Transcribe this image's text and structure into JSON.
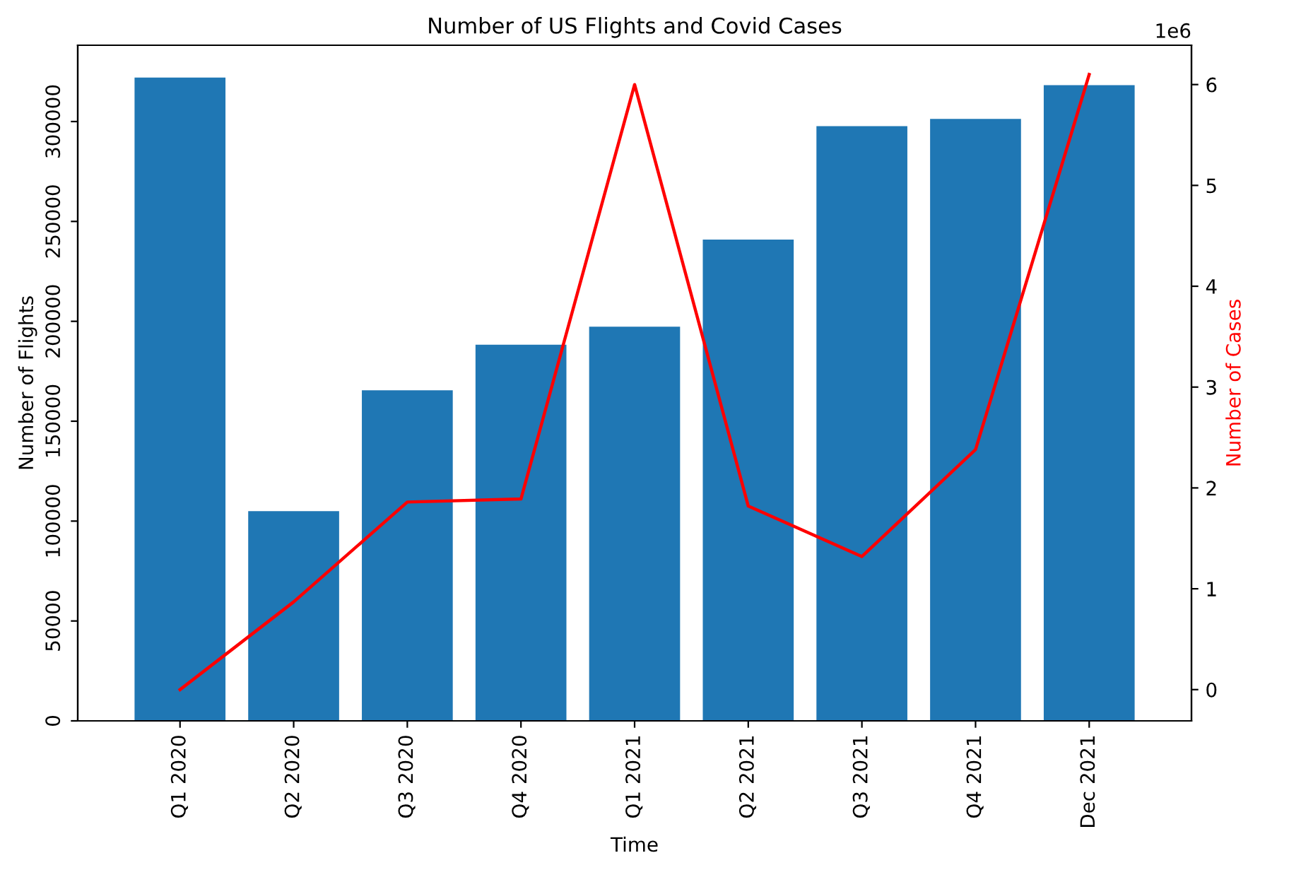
{
  "chart_data": {
    "type": "bar",
    "title": "Number of US Flights and Covid Cases",
    "xlabel": "Time",
    "ylabel": "Number of Flights",
    "y2label": "Number of Cases",
    "categories": [
      "Q1 2020",
      "Q2 2020",
      "Q3 2020",
      "Q4 2020",
      "Q1 2021",
      "Q2 2021",
      "Q3 2021",
      "Q4 2021",
      "Dec 2021"
    ],
    "series": [
      {
        "color": "#1f77b4",
        "values": [
          322000,
          105000,
          165500,
          188300,
          197300,
          240900,
          297700,
          301300,
          318200
        ]
      },
      {
        "type": "line",
        "axis": "y2",
        "color": "#ff0000",
        "values": [
          0,
          0.87,
          1.86,
          1.89,
          6.0,
          1.82,
          1.32,
          2.38,
          6.1
        ]
      }
    ],
    "ylim": [
      0,
      338200
    ],
    "yticks": [
      0,
      50000,
      100000,
      150000,
      200000,
      250000,
      300000
    ],
    "y2lim": [
      -0.31,
      6.39
    ],
    "y2ticks": [
      0,
      1,
      2,
      3,
      4,
      5,
      6
    ],
    "annotations": [
      "1e6"
    ],
    "grid": false,
    "legend": false
  }
}
